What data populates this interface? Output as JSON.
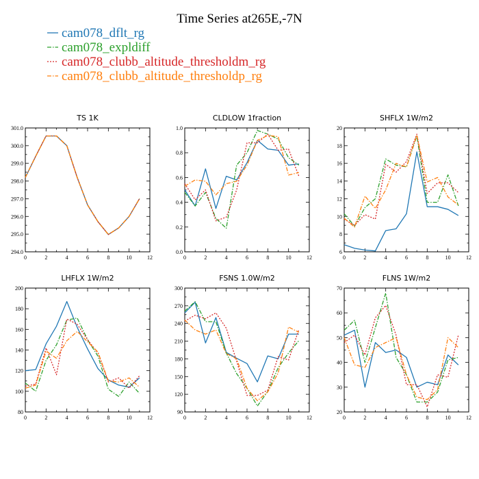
{
  "chart_data": {
    "title": "Time Series at265E,-7N",
    "type": "line",
    "legend": [
      {
        "name": "cam078_dflt_rg",
        "color": "#1f77b4",
        "dash": "solid"
      },
      {
        "name": "cam078_expldiff",
        "color": "#2ca02c",
        "dash": "dashdot"
      },
      {
        "name": "cam078_clubb_altitude_thresholdm_rg",
        "color": "#d62728",
        "dash": "dotted"
      },
      {
        "name": "cam078_clubb_altitude_thresholdp_rg",
        "color": "#ff7f0e",
        "dash": "dashdot"
      }
    ],
    "panels": [
      {
        "title": "TS   1K",
        "x": [
          0,
          1,
          2,
          3,
          4,
          5,
          6,
          7,
          8,
          9,
          10,
          11
        ],
        "xlim": [
          0,
          12
        ],
        "xticks": [
          0,
          2,
          4,
          6,
          8,
          10,
          12
        ],
        "ylim": [
          294.0,
          301.0
        ],
        "yticks": [
          294.0,
          295.0,
          296.0,
          297.0,
          298.0,
          299.0,
          300.0,
          301.0
        ],
        "ytick_labels": [
          "294.0",
          "295.0",
          "296.0",
          "297.0",
          "298.0",
          "299.0",
          "300.0",
          "301.0"
        ],
        "series": [
          {
            "name": "cam078_dflt_rg",
            "values": [
              298.2,
              299.4,
              300.55,
              300.55,
              300.0,
              298.2,
              296.65,
              295.7,
              294.98,
              295.35,
              296.0,
              297.0
            ]
          },
          {
            "name": "cam078_expldiff",
            "values": [
              298.2,
              299.4,
              300.55,
              300.55,
              300.0,
              298.2,
              296.65,
              295.7,
              294.98,
              295.35,
              296.0,
              297.0
            ]
          },
          {
            "name": "cam078_clubb_altitude_thresholdm_rg",
            "values": [
              298.2,
              299.4,
              300.55,
              300.55,
              300.0,
              298.2,
              296.65,
              295.7,
              294.98,
              295.35,
              296.0,
              297.0
            ]
          },
          {
            "name": "cam078_clubb_altitude_thresholdp_rg",
            "values": [
              298.2,
              299.4,
              300.55,
              300.55,
              300.0,
              298.2,
              296.65,
              295.7,
              294.98,
              295.35,
              296.0,
              297.0
            ]
          }
        ]
      },
      {
        "title": "CLDLOW   1fraction",
        "x": [
          0,
          1,
          2,
          3,
          4,
          5,
          6,
          7,
          8,
          9,
          10,
          11
        ],
        "xlim": [
          0,
          12
        ],
        "xticks": [
          0,
          2,
          4,
          6,
          8,
          10,
          12
        ],
        "ylim": [
          0.0,
          1.0
        ],
        "yticks": [
          0.0,
          0.2,
          0.4,
          0.6,
          0.8,
          1.0
        ],
        "ytick_labels": [
          "0.0",
          "0.2",
          "0.4",
          "0.6",
          "0.8",
          "1.0"
        ],
        "series": [
          {
            "name": "cam078_dflt_rg",
            "values": [
              0.5,
              0.37,
              0.67,
              0.35,
              0.61,
              0.58,
              0.72,
              0.9,
              0.83,
              0.82,
              0.7,
              0.71
            ]
          },
          {
            "name": "cam078_expldiff",
            "values": [
              0.48,
              0.37,
              0.48,
              0.27,
              0.19,
              0.7,
              0.8,
              0.98,
              0.95,
              0.91,
              0.76,
              0.7
            ]
          },
          {
            "name": "cam078_clubb_altitude_thresholdm_rg",
            "values": [
              0.55,
              0.42,
              0.5,
              0.25,
              0.28,
              0.5,
              0.88,
              0.88,
              0.95,
              0.82,
              0.83,
              0.61
            ]
          },
          {
            "name": "cam078_clubb_altitude_thresholdp_rg",
            "values": [
              0.53,
              0.58,
              0.57,
              0.46,
              0.55,
              0.57,
              0.7,
              0.9,
              0.94,
              0.93,
              0.62,
              0.64
            ]
          }
        ]
      },
      {
        "title": "SHFLX   1W/m2",
        "x": [
          0,
          1,
          2,
          3,
          4,
          5,
          6,
          7,
          8,
          9,
          10,
          11
        ],
        "xlim": [
          0,
          12
        ],
        "xticks": [
          0,
          2,
          4,
          6,
          8,
          10,
          12
        ],
        "ylim": [
          6,
          20
        ],
        "yticks": [
          6,
          8,
          10,
          12,
          14,
          16,
          18,
          20
        ],
        "ytick_labels": [
          "6",
          "8",
          "10",
          "12",
          "14",
          "16",
          "18",
          "20"
        ],
        "series": [
          {
            "name": "cam078_dflt_rg",
            "values": [
              6.8,
              6.4,
              6.2,
              6.1,
              8.4,
              8.6,
              10.3,
              17.3,
              11.1,
              11.1,
              10.8,
              10.1
            ]
          },
          {
            "name": "cam078_expldiff",
            "values": [
              10.3,
              8.9,
              11.0,
              12.0,
              16.5,
              15.8,
              15.6,
              19.1,
              11.6,
              11.6,
              14.7,
              11.2
            ]
          },
          {
            "name": "cam078_clubb_altitude_thresholdm_rg",
            "values": [
              9.7,
              9.0,
              10.2,
              9.7,
              15.9,
              15.0,
              16.2,
              19.3,
              12.6,
              13.8,
              13.8,
              12.7
            ]
          },
          {
            "name": "cam078_clubb_altitude_thresholdp_rg",
            "values": [
              9.8,
              8.8,
              12.3,
              10.9,
              13.0,
              16.0,
              15.6,
              19.2,
              13.9,
              14.4,
              12.2,
              11.3
            ]
          }
        ]
      },
      {
        "title": "LHFLX   1W/m2",
        "x": [
          0,
          1,
          2,
          3,
          4,
          5,
          6,
          7,
          8,
          9,
          10,
          11
        ],
        "xlim": [
          0,
          12
        ],
        "xticks": [
          0,
          2,
          4,
          6,
          8,
          10,
          12
        ],
        "ylim": [
          80,
          200
        ],
        "yticks": [
          80,
          100,
          120,
          140,
          160,
          180,
          200
        ],
        "ytick_labels": [
          "80",
          "100",
          "120",
          "140",
          "160",
          "180",
          "200"
        ],
        "series": [
          {
            "name": "cam078_dflt_rg",
            "values": [
              120,
              121,
              146,
              163,
              187,
              162,
              141,
              122,
              111,
              106,
              104,
              113
            ]
          },
          {
            "name": "cam078_expldiff",
            "values": [
              108,
              100,
              130,
              145,
              169,
              171,
              150,
              134,
              102,
              95,
              109,
              98
            ]
          },
          {
            "name": "cam078_clubb_altitude_thresholdm_rg",
            "values": [
              105,
              107,
              142,
              116,
              170,
              165,
              150,
              137,
              109,
              113,
              103,
              115
            ]
          },
          {
            "name": "cam078_clubb_altitude_thresholdp_rg",
            "values": [
              103,
              106,
              139,
              132,
              149,
              158,
              148,
              138,
              110,
              109,
              113,
              104
            ]
          }
        ]
      },
      {
        "title": "FSNS   1.0W/m2",
        "x": [
          0,
          1,
          2,
          3,
          4,
          5,
          6,
          7,
          8,
          9,
          10,
          11
        ],
        "xlim": [
          0,
          12
        ],
        "xticks": [
          0,
          2,
          4,
          6,
          8,
          10,
          12
        ],
        "ylim": [
          90,
          300
        ],
        "yticks": [
          90,
          120,
          150,
          180,
          210,
          240,
          270,
          300
        ],
        "ytick_labels": [
          "90",
          "120",
          "150",
          "180",
          "210",
          "240",
          "270",
          "300"
        ],
        "series": [
          {
            "name": "cam078_dflt_rg",
            "values": [
              258,
              276,
              207,
              250,
              191,
              181,
              172,
              141,
              185,
              180,
              222,
              222
            ]
          },
          {
            "name": "cam078_expldiff",
            "values": [
              261,
              277,
              243,
              243,
              190,
              155,
              130,
              100,
              125,
              165,
              190,
              211
            ]
          },
          {
            "name": "cam078_clubb_altitude_thresholdm_rg",
            "values": [
              244,
              254,
              248,
              258,
              232,
              176,
              118,
              118,
              127,
              184,
              178,
              230
            ]
          },
          {
            "name": "cam078_clubb_altitude_thresholdp_rg",
            "values": [
              246,
              229,
              222,
              229,
              189,
              180,
              130,
              109,
              124,
              156,
              234,
              225
            ]
          }
        ]
      },
      {
        "title": "FLNS   1W/m2",
        "x": [
          0,
          1,
          2,
          3,
          4,
          5,
          6,
          7,
          8,
          9,
          10,
          11
        ],
        "xlim": [
          0,
          12
        ],
        "xticks": [
          0,
          2,
          4,
          6,
          8,
          10,
          12
        ],
        "ylim": [
          20,
          70
        ],
        "yticks": [
          20,
          30,
          40,
          50,
          60,
          70
        ],
        "ytick_labels": [
          "20",
          "30",
          "40",
          "50",
          "60",
          "70"
        ],
        "series": [
          {
            "name": "cam078_dflt_rg",
            "values": [
              51,
              53,
              30,
              48,
              44,
              45,
              42,
              30,
              32,
              31,
              43,
              39
            ]
          },
          {
            "name": "cam078_expldiff",
            "values": [
              53,
              57,
              40,
              54,
              68,
              42,
              35,
              24,
              24,
              28,
              41,
              42
            ]
          },
          {
            "name": "cam078_clubb_altitude_thresholdm_rg",
            "values": [
              48,
              51,
              43,
              58,
              63,
              51,
              31,
              31,
              22,
              35,
              34,
              51
            ]
          },
          {
            "name": "cam078_clubb_altitude_thresholdp_rg",
            "values": [
              50,
              39,
              38,
              46,
              48,
              50,
              35,
              26,
              25,
              29,
              50,
              46
            ]
          }
        ]
      }
    ]
  }
}
